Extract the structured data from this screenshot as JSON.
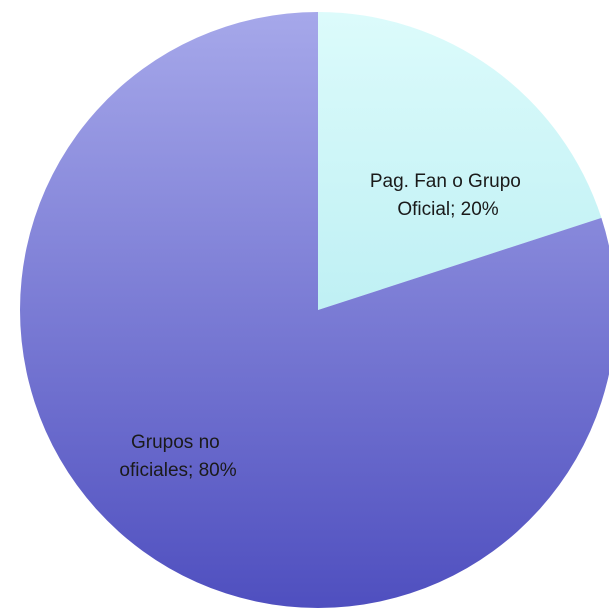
{
  "chart_data": {
    "type": "pie",
    "slices": [
      {
        "category": "Pag. Fan o Grupo Oficial",
        "value": 20,
        "label_lines": [
          "Pag. Fan o Grupo",
          "Oficial; 20%"
        ],
        "color_light": "#dcfbfb",
        "color_dark": "#bff0f4"
      },
      {
        "category": "Grupos no oficiales",
        "value": 80,
        "label_lines": [
          "Grupos no",
          "oficiales; 80%"
        ],
        "color_light": "#a6a8ea",
        "color_dark": "#4f4fbf"
      }
    ]
  }
}
